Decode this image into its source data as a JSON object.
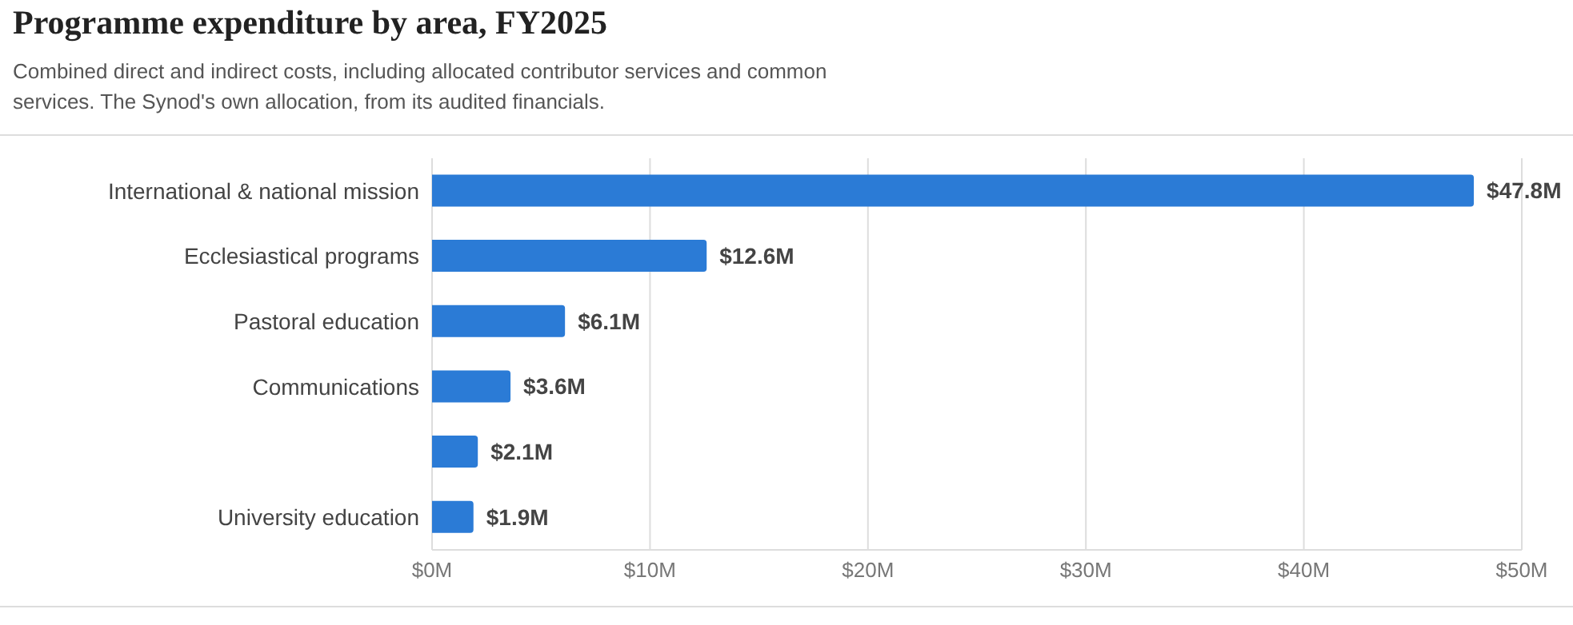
{
  "chart_data": {
    "type": "bar",
    "orientation": "horizontal",
    "title": "Programme expenditure by area, FY2025",
    "subtitle": "Combined direct and indirect costs, including allocated contributor services and common services. The Synod's own allocation, from its audited financials.",
    "categories": [
      "International & national mission",
      "Ecclesiastical programs",
      "Pastoral education",
      "Communications",
      null,
      "University education"
    ],
    "values": [
      47.8,
      12.6,
      6.1,
      3.6,
      2.1,
      1.9
    ],
    "value_labels": [
      "$47.8M",
      "$12.6M",
      "$6.1M",
      "$3.6M",
      "$2.1M",
      "$1.9M"
    ],
    "color": "#2b7bd6",
    "xlim": [
      0,
      50
    ],
    "xticks": [
      {
        "value": 0,
        "label": "$0M"
      },
      {
        "value": 10,
        "label": "$10M"
      },
      {
        "value": 20,
        "label": "$20M"
      },
      {
        "value": 30,
        "label": "$30M"
      },
      {
        "value": 40,
        "label": "$40M"
      },
      {
        "value": 50,
        "label": "$50M"
      }
    ],
    "grid": "x",
    "legend": false
  }
}
